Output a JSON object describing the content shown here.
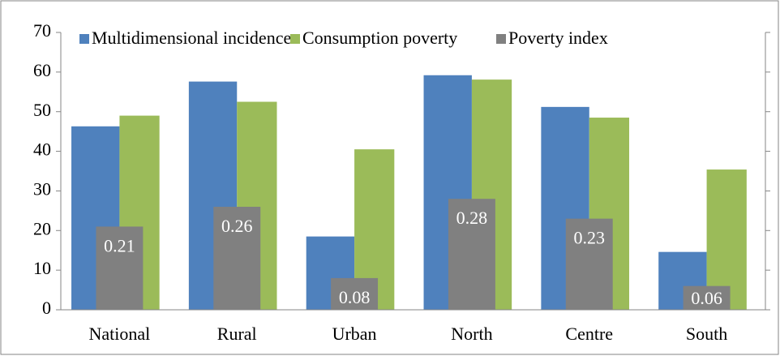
{
  "chart_data": {
    "type": "bar",
    "categories": [
      "National",
      "Rural",
      "Urban",
      "North",
      "Centre",
      "South"
    ],
    "series": [
      {
        "name": "Multidimensional incidence",
        "color": "#4f81bd",
        "values": [
          46.3,
          57.6,
          18.5,
          59.2,
          51.2,
          14.6
        ]
      },
      {
        "name": "Consumption poverty",
        "color": "#9bbb59",
        "values": [
          49,
          52.5,
          40.5,
          58.1,
          48.5,
          35.4
        ]
      },
      {
        "name": "Poverty index",
        "color": "#808080",
        "axis": "y2",
        "values": [
          0.21,
          0.26,
          0.08,
          0.28,
          0.23,
          0.06
        ]
      }
    ],
    "ylim": [
      0,
      70
    ],
    "yticks": [
      0,
      10,
      20,
      30,
      40,
      50,
      60,
      70
    ],
    "y2lim": [
      0,
      0.7
    ],
    "y2ticks": [
      0,
      0.1,
      0.2,
      0.3,
      0.4,
      0.5,
      0.6,
      0.7
    ],
    "legend": "top",
    "grid": false
  }
}
